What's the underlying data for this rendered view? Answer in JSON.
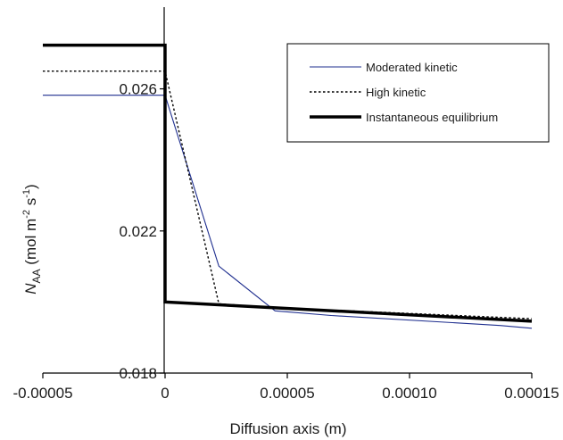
{
  "chart_data": {
    "type": "line",
    "xlabel": "Diffusion axis (m)",
    "ylabel": {
      "symbol": "N",
      "subscript": "AA",
      "unit_open": " (mol m",
      "exp1": "-2",
      "unit_mid": " s",
      "exp2": "-1",
      "unit_close": ")"
    },
    "xlim": [
      -5e-05,
      0.00015
    ],
    "ylim": [
      0.018,
      0.0283
    ],
    "x_ticks": [
      {
        "value": -5e-05,
        "label": "-0.00005"
      },
      {
        "value": 0,
        "label": "0"
      },
      {
        "value": 5e-05,
        "label": "0.00005"
      },
      {
        "value": 0.0001,
        "label": "0.00010"
      },
      {
        "value": 0.00015,
        "label": "0.00015"
      }
    ],
    "y_ticks": [
      {
        "value": 0.018,
        "label": "0.018"
      },
      {
        "value": 0.022,
        "label": "0.022"
      },
      {
        "value": 0.026,
        "label": "0.026"
      }
    ],
    "grid": false,
    "legend_position": "top-right",
    "series": [
      {
        "name": "Moderated kinetic",
        "color": "#1f2f8f",
        "style": "solid",
        "points": [
          [
            -5e-05,
            0.02582
          ],
          [
            0,
            0.02582
          ],
          [
            2.2e-05,
            0.02101
          ],
          [
            4.5e-05,
            0.01975
          ],
          [
            6.8e-05,
            0.01962
          ],
          [
            0.000137,
            0.01934
          ],
          [
            0.00015,
            0.01926
          ]
        ]
      },
      {
        "name": "High kinetic",
        "color": "#000000",
        "style": "dotted",
        "points": [
          [
            -5e-05,
            0.0265
          ],
          [
            0,
            0.0265
          ],
          [
            2.2e-05,
            0.01995
          ],
          [
            4.5e-05,
            0.01984
          ],
          [
            0.00015,
            0.01953
          ]
        ]
      },
      {
        "name": "Instantaneous equilibrium",
        "color": "#000000",
        "style": "thick",
        "points": [
          [
            -5e-05,
            0.02723
          ],
          [
            0,
            0.02723
          ],
          [
            0,
            0.02
          ],
          [
            0.00015,
            0.01946
          ]
        ]
      }
    ]
  }
}
